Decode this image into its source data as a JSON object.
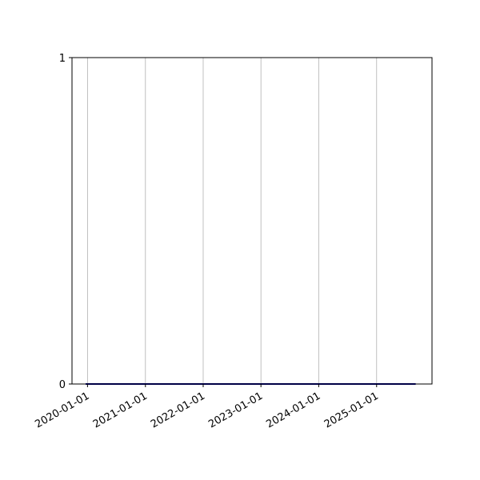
{
  "chart_data": {
    "type": "line",
    "title": "",
    "xlabel": "",
    "ylabel": "",
    "x_axis_type": "date",
    "xlim": [
      "2019-09-25",
      "2025-12-17"
    ],
    "ylim": [
      0,
      1
    ],
    "x_ticks": [
      "2020-01-01",
      "2021-01-01",
      "2022-01-01",
      "2023-01-01",
      "2024-01-01",
      "2025-01-01"
    ],
    "y_ticks": [
      0,
      1
    ],
    "grid": {
      "x": true,
      "y": false
    },
    "series": [
      {
        "x": [
          "2019-12-20",
          "2025-09-05"
        ],
        "y": [
          0,
          0
        ],
        "color": "#00008b"
      }
    ]
  }
}
